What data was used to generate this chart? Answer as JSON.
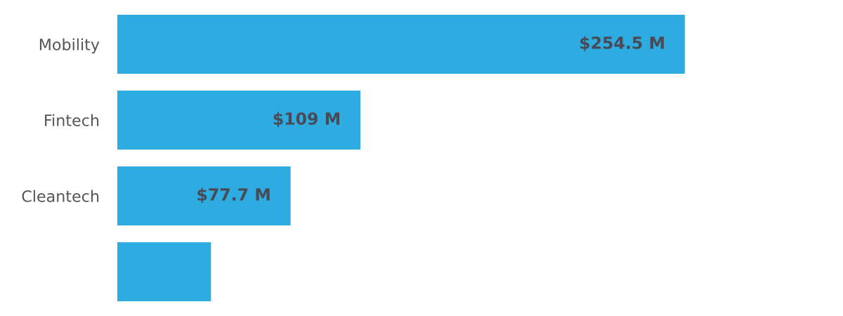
{
  "chart_data": {
    "type": "bar",
    "orientation": "horizontal",
    "categories": [
      "Mobility",
      "Fintech",
      "Cleantech",
      null
    ],
    "values": [
      254.5,
      109,
      77.7,
      42
    ],
    "value_labels": [
      "$254.5 M",
      "$109 M",
      "$77.7 M",
      null
    ],
    "color": "#2eabe1",
    "tick_labels": "y",
    "grid": false
  }
}
